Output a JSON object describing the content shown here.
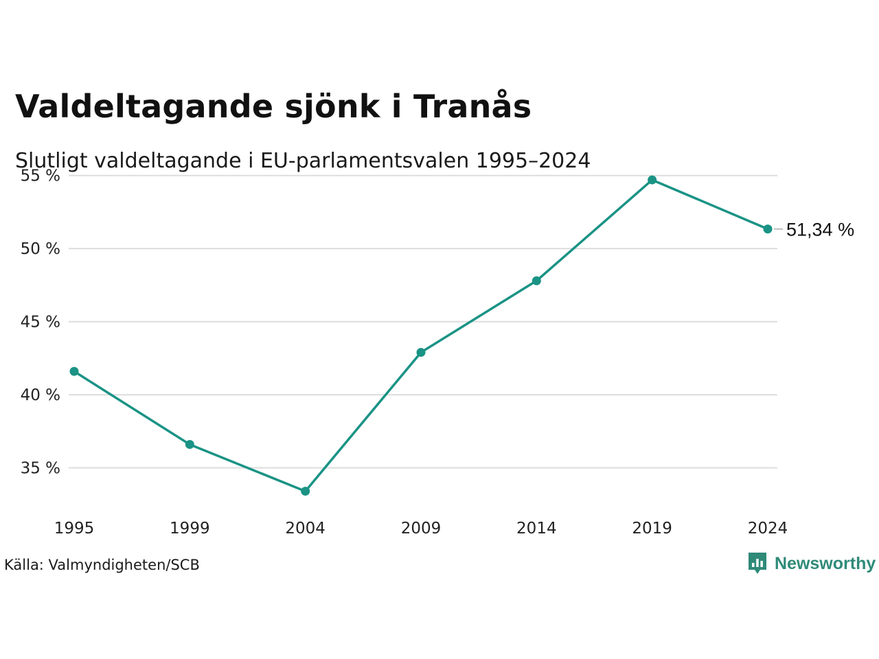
{
  "header": {
    "title": "Valdeltagande sjönk i Tranås",
    "subtitle": "Slutligt valdeltagande i EU-parlamentsvalen 1995–2024"
  },
  "chart_data": {
    "type": "line",
    "categories": [
      "1995",
      "1999",
      "2004",
      "2009",
      "2014",
      "2019",
      "2024"
    ],
    "series": [
      {
        "values": [
          41.6,
          36.6,
          33.4,
          42.9,
          47.8,
          54.7,
          51.34
        ]
      }
    ],
    "y_ticks": [
      35,
      40,
      45,
      50,
      55
    ],
    "y_tick_labels": [
      "35 %",
      "40 %",
      "45 %",
      "50 %",
      "55 %"
    ],
    "ylim": [
      33,
      55
    ],
    "grid": true,
    "end_label": "51,34 %",
    "line_color": "#1a9385",
    "grid_color": "#dddddd"
  },
  "footer": {
    "source": "Källa: Valmyndigheten/SCB",
    "brand": "Newsworthy",
    "brand_icon": "newsworthy-logo-icon",
    "brand_color": "#2f8a78"
  }
}
